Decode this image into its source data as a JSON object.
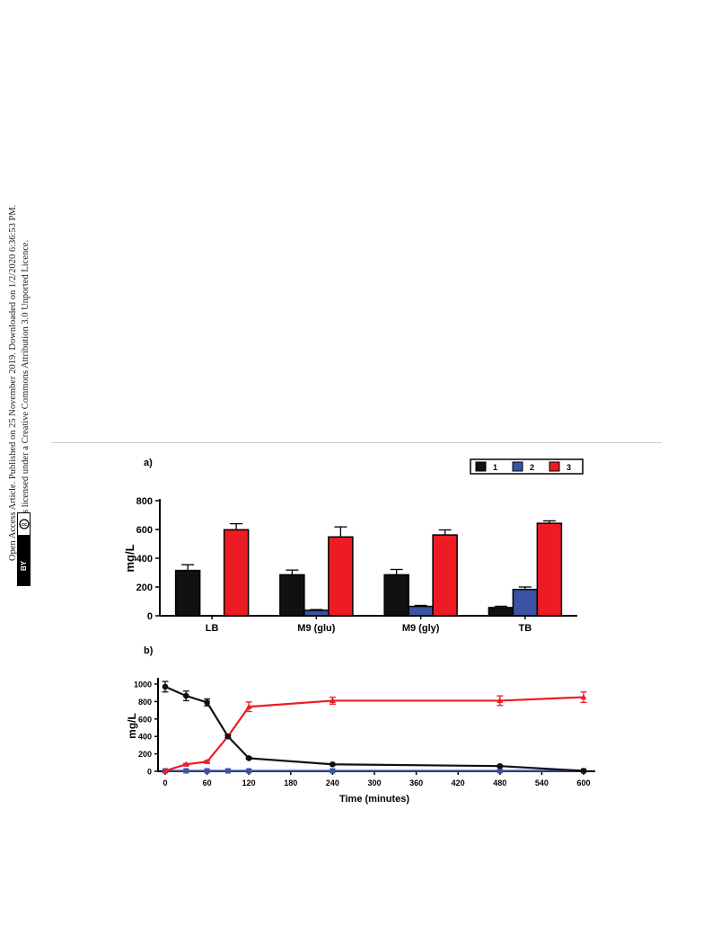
{
  "sidebar": {
    "line1": "Open Access Article. Published on 25 November 2019. Downloaded on 1/2/2020 6:36:53 PM.",
    "line2": "This article is licensed under a Creative Commons Attribution 3.0 Unported Licence.",
    "badge_cc": "cc",
    "badge_by": "BY"
  },
  "chart_data": [
    {
      "type": "bar",
      "panel_label": "a)",
      "ylabel": "mg/L",
      "xlabel": "",
      "ylim": [
        0,
        800
      ],
      "yticks": [
        0,
        200,
        400,
        600,
        800
      ],
      "categories": [
        "LB",
        "M9 (glu)",
        "M9 (gly)",
        "TB"
      ],
      "legend_position": "top-right",
      "series": [
        {
          "name": "1",
          "color": "#111111",
          "values": [
            315,
            285,
            285,
            57
          ],
          "errors": [
            40,
            33,
            37,
            9
          ]
        },
        {
          "name": "2",
          "color": "#3a53a4",
          "values": [
            0,
            38,
            65,
            183
          ],
          "errors": [
            0,
            5,
            7,
            17
          ]
        },
        {
          "name": "3",
          "color": "#ed1c24",
          "values": [
            598,
            548,
            562,
            643
          ],
          "errors": [
            42,
            70,
            35,
            17
          ]
        }
      ]
    },
    {
      "type": "line",
      "panel_label": "b)",
      "ylabel": "mg/L",
      "xlabel": "Time (minutes)",
      "xlim": [
        0,
        600
      ],
      "ylim": [
        0,
        1000
      ],
      "xticks": [
        0,
        60,
        120,
        180,
        240,
        300,
        360,
        420,
        480,
        540,
        600
      ],
      "yticks": [
        0,
        200,
        400,
        600,
        800,
        1000
      ],
      "series": [
        {
          "name": "1",
          "color": "#111111",
          "marker": "circle",
          "x": [
            0,
            30,
            60,
            90,
            120,
            240,
            480,
            600
          ],
          "y": [
            970,
            865,
            790,
            400,
            150,
            80,
            60,
            5
          ],
          "errors": [
            60,
            55,
            40,
            15,
            10,
            8,
            10,
            5
          ]
        },
        {
          "name": "2",
          "color": "#3a53a4",
          "marker": "square",
          "x": [
            0,
            30,
            60,
            90,
            120,
            240,
            480,
            600
          ],
          "y": [
            5,
            5,
            5,
            5,
            5,
            5,
            5,
            5
          ],
          "errors": [
            0,
            0,
            0,
            0,
            0,
            0,
            0,
            0
          ]
        },
        {
          "name": "3",
          "color": "#ed1c24",
          "marker": "triangle",
          "x": [
            0,
            30,
            60,
            90,
            120,
            240,
            480,
            600
          ],
          "y": [
            5,
            80,
            110,
            400,
            740,
            810,
            810,
            850
          ],
          "errors": [
            0,
            10,
            12,
            20,
            55,
            40,
            55,
            60
          ]
        }
      ]
    }
  ]
}
